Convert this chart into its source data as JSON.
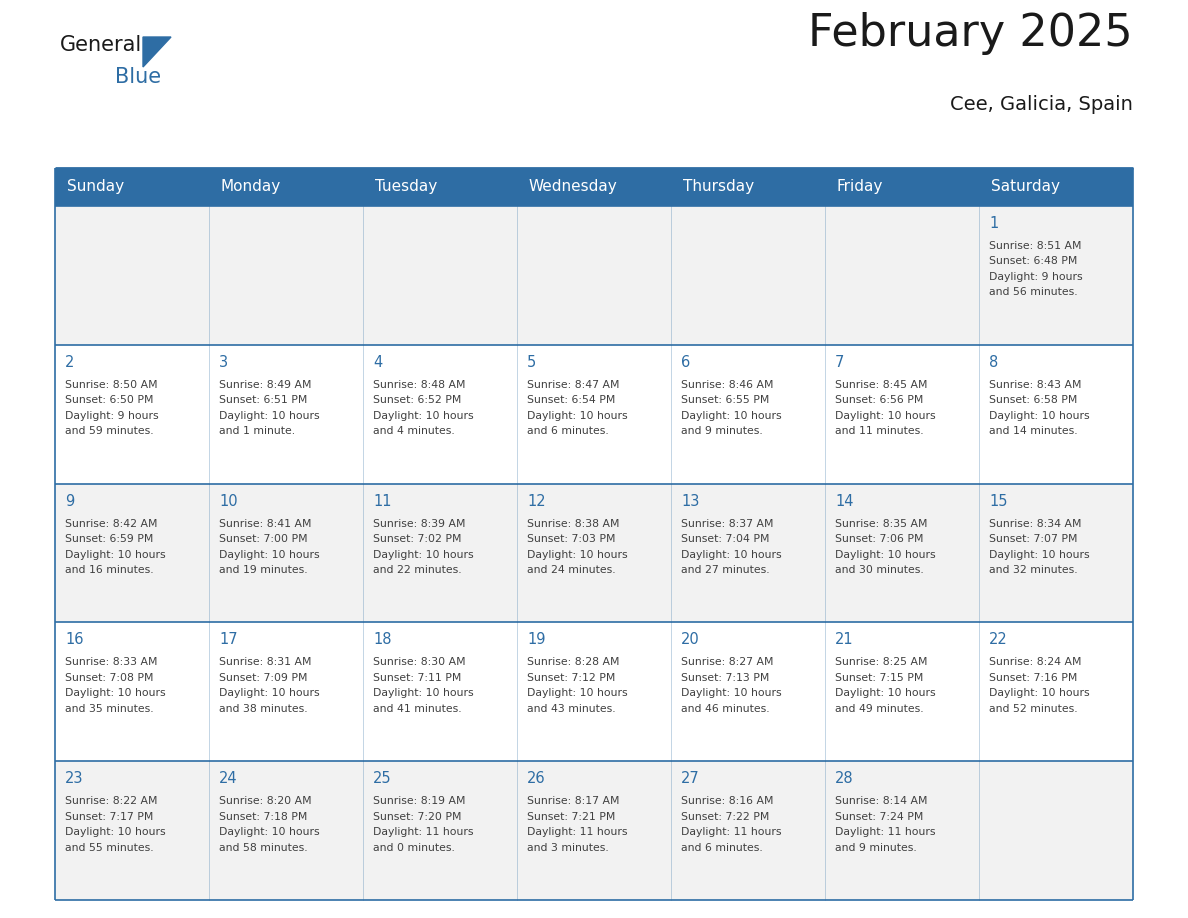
{
  "title": "February 2025",
  "subtitle": "Cee, Galicia, Spain",
  "header_bg_color": "#2E6DA4",
  "header_text_color": "#FFFFFF",
  "day_names": [
    "Sunday",
    "Monday",
    "Tuesday",
    "Wednesday",
    "Thursday",
    "Friday",
    "Saturday"
  ],
  "bg_color": "#FFFFFF",
  "cell_bg_even": "#FFFFFF",
  "cell_bg_odd": "#F2F2F2",
  "date_color": "#2E6DA4",
  "text_color": "#404040",
  "line_color": "#2E6DA4",
  "logo_general_color": "#1a1a1a",
  "logo_blue_color": "#2E6DA4",
  "calendar": [
    [
      null,
      null,
      null,
      null,
      null,
      null,
      {
        "day": 1,
        "sunrise": "8:51 AM",
        "sunset": "6:48 PM",
        "daylight": "9 hours",
        "daylight2": "and 56 minutes."
      }
    ],
    [
      {
        "day": 2,
        "sunrise": "8:50 AM",
        "sunset": "6:50 PM",
        "daylight": "9 hours",
        "daylight2": "and 59 minutes."
      },
      {
        "day": 3,
        "sunrise": "8:49 AM",
        "sunset": "6:51 PM",
        "daylight": "10 hours",
        "daylight2": "and 1 minute."
      },
      {
        "day": 4,
        "sunrise": "8:48 AM",
        "sunset": "6:52 PM",
        "daylight": "10 hours",
        "daylight2": "and 4 minutes."
      },
      {
        "day": 5,
        "sunrise": "8:47 AM",
        "sunset": "6:54 PM",
        "daylight": "10 hours",
        "daylight2": "and 6 minutes."
      },
      {
        "day": 6,
        "sunrise": "8:46 AM",
        "sunset": "6:55 PM",
        "daylight": "10 hours",
        "daylight2": "and 9 minutes."
      },
      {
        "day": 7,
        "sunrise": "8:45 AM",
        "sunset": "6:56 PM",
        "daylight": "10 hours",
        "daylight2": "and 11 minutes."
      },
      {
        "day": 8,
        "sunrise": "8:43 AM",
        "sunset": "6:58 PM",
        "daylight": "10 hours",
        "daylight2": "and 14 minutes."
      }
    ],
    [
      {
        "day": 9,
        "sunrise": "8:42 AM",
        "sunset": "6:59 PM",
        "daylight": "10 hours",
        "daylight2": "and 16 minutes."
      },
      {
        "day": 10,
        "sunrise": "8:41 AM",
        "sunset": "7:00 PM",
        "daylight": "10 hours",
        "daylight2": "and 19 minutes."
      },
      {
        "day": 11,
        "sunrise": "8:39 AM",
        "sunset": "7:02 PM",
        "daylight": "10 hours",
        "daylight2": "and 22 minutes."
      },
      {
        "day": 12,
        "sunrise": "8:38 AM",
        "sunset": "7:03 PM",
        "daylight": "10 hours",
        "daylight2": "and 24 minutes."
      },
      {
        "day": 13,
        "sunrise": "8:37 AM",
        "sunset": "7:04 PM",
        "daylight": "10 hours",
        "daylight2": "and 27 minutes."
      },
      {
        "day": 14,
        "sunrise": "8:35 AM",
        "sunset": "7:06 PM",
        "daylight": "10 hours",
        "daylight2": "and 30 minutes."
      },
      {
        "day": 15,
        "sunrise": "8:34 AM",
        "sunset": "7:07 PM",
        "daylight": "10 hours",
        "daylight2": "and 32 minutes."
      }
    ],
    [
      {
        "day": 16,
        "sunrise": "8:33 AM",
        "sunset": "7:08 PM",
        "daylight": "10 hours",
        "daylight2": "and 35 minutes."
      },
      {
        "day": 17,
        "sunrise": "8:31 AM",
        "sunset": "7:09 PM",
        "daylight": "10 hours",
        "daylight2": "and 38 minutes."
      },
      {
        "day": 18,
        "sunrise": "8:30 AM",
        "sunset": "7:11 PM",
        "daylight": "10 hours",
        "daylight2": "and 41 minutes."
      },
      {
        "day": 19,
        "sunrise": "8:28 AM",
        "sunset": "7:12 PM",
        "daylight": "10 hours",
        "daylight2": "and 43 minutes."
      },
      {
        "day": 20,
        "sunrise": "8:27 AM",
        "sunset": "7:13 PM",
        "daylight": "10 hours",
        "daylight2": "and 46 minutes."
      },
      {
        "day": 21,
        "sunrise": "8:25 AM",
        "sunset": "7:15 PM",
        "daylight": "10 hours",
        "daylight2": "and 49 minutes."
      },
      {
        "day": 22,
        "sunrise": "8:24 AM",
        "sunset": "7:16 PM",
        "daylight": "10 hours",
        "daylight2": "and 52 minutes."
      }
    ],
    [
      {
        "day": 23,
        "sunrise": "8:22 AM",
        "sunset": "7:17 PM",
        "daylight": "10 hours",
        "daylight2": "and 55 minutes."
      },
      {
        "day": 24,
        "sunrise": "8:20 AM",
        "sunset": "7:18 PM",
        "daylight": "10 hours",
        "daylight2": "and 58 minutes."
      },
      {
        "day": 25,
        "sunrise": "8:19 AM",
        "sunset": "7:20 PM",
        "daylight": "11 hours",
        "daylight2": "and 0 minutes."
      },
      {
        "day": 26,
        "sunrise": "8:17 AM",
        "sunset": "7:21 PM",
        "daylight": "11 hours",
        "daylight2": "and 3 minutes."
      },
      {
        "day": 27,
        "sunrise": "8:16 AM",
        "sunset": "7:22 PM",
        "daylight": "11 hours",
        "daylight2": "and 6 minutes."
      },
      {
        "day": 28,
        "sunrise": "8:14 AM",
        "sunset": "7:24 PM",
        "daylight": "11 hours",
        "daylight2": "and 9 minutes."
      },
      null
    ]
  ]
}
